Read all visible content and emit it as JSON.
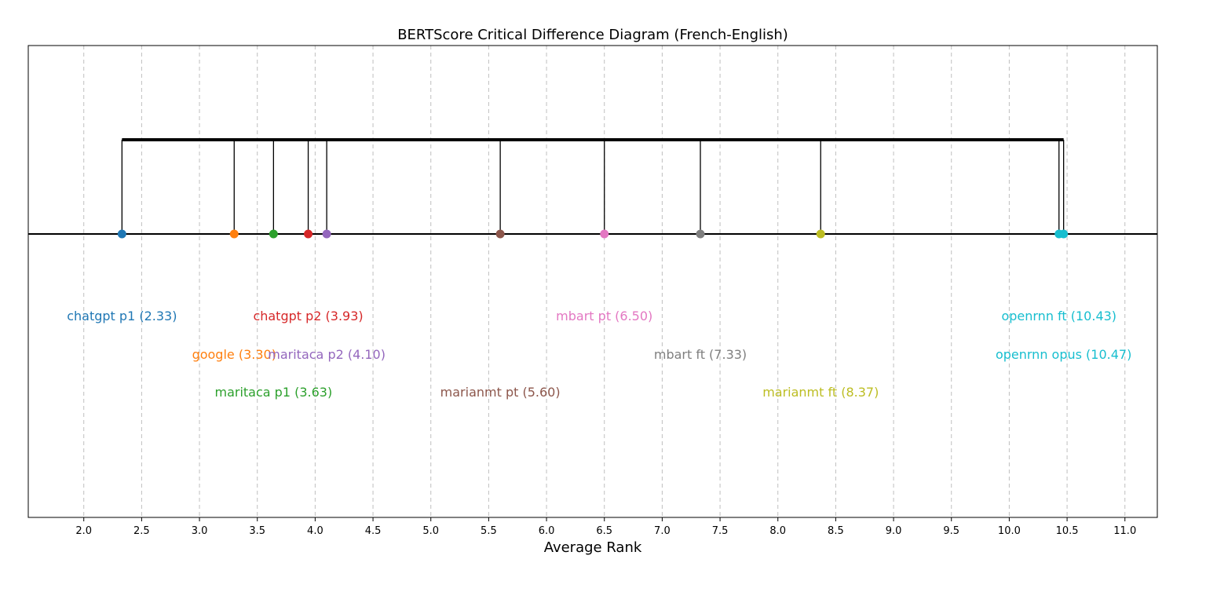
{
  "chart_data": {
    "type": "scatter",
    "title": "BERTScore Critical Difference Diagram (French-English)",
    "xlabel": "Average Rank",
    "ylabel": "",
    "xlim": [
      1.52,
      11.28
    ],
    "x_ticks": [
      2.0,
      2.5,
      3.0,
      3.5,
      4.0,
      4.5,
      5.0,
      5.5,
      6.0,
      6.5,
      7.0,
      7.5,
      8.0,
      8.5,
      9.0,
      9.5,
      10.0,
      10.5,
      11.0
    ],
    "x_tick_labels": [
      "2.0",
      "2.5",
      "3.0",
      "3.5",
      "4.0",
      "4.5",
      "5.0",
      "5.5",
      "6.0",
      "6.5",
      "7.0",
      "7.5",
      "8.0",
      "8.5",
      "9.0",
      "9.5",
      "10.0",
      "10.5",
      "11.0"
    ],
    "grid": "vertical dashed",
    "critical_difference_group": [
      2.33,
      10.47
    ],
    "series": [
      {
        "label": "chatgpt p1 (2.33)",
        "rank": 2.33,
        "color": "#1f77b4",
        "label_row": 0
      },
      {
        "label": "google (3.30)",
        "rank": 3.3,
        "color": "#ff7f0e",
        "label_row": 1
      },
      {
        "label": "maritaca p1 (3.63)",
        "rank": 3.64,
        "color": "#2ca02c",
        "label_row": 2
      },
      {
        "label": "chatgpt p2 (3.93)",
        "rank": 3.94,
        "color": "#d62728",
        "label_row": 0
      },
      {
        "label": "maritaca p2 (4.10)",
        "rank": 4.1,
        "color": "#9467bd",
        "label_row": 1
      },
      {
        "label": "marianmt pt (5.60)",
        "rank": 5.6,
        "color": "#8c564b",
        "label_row": 2
      },
      {
        "label": "mbart pt (6.50)",
        "rank": 6.5,
        "color": "#e377c2",
        "label_row": 0
      },
      {
        "label": "mbart ft (7.33)",
        "rank": 7.33,
        "color": "#7f7f7f",
        "label_row": 1
      },
      {
        "label": "marianmt ft (8.37)",
        "rank": 8.37,
        "color": "#bcbd22",
        "label_row": 2
      },
      {
        "label": "openrnn ft (10.43)",
        "rank": 10.43,
        "color": "#17becf",
        "label_row": 0
      },
      {
        "label": "openrnn opus (10.47)",
        "rank": 10.47,
        "color": "#17becf",
        "label_row": 1
      }
    ]
  }
}
